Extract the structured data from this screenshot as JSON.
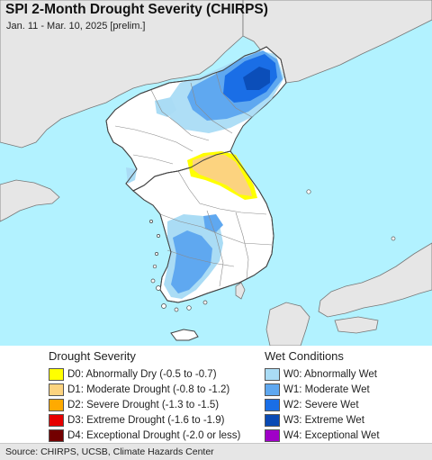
{
  "header": {
    "title": "SPI 2-Month Drought Severity (CHIRPS)",
    "subtitle": "Jan. 11 - Mar. 10, 2025 [prelim.]"
  },
  "legend": {
    "drought": {
      "heading": "Drought Severity",
      "items": [
        {
          "label": "D0: Abnormally Dry (-0.5 to -0.7)",
          "color": "#ffff00"
        },
        {
          "label": "D1: Moderate Drought (-0.8 to -1.2)",
          "color": "#fcd37f"
        },
        {
          "label": "D2: Severe Drought (-1.3 to -1.5)",
          "color": "#ffaa00"
        },
        {
          "label": "D3: Extreme Drought (-1.6 to -1.9)",
          "color": "#e60000"
        },
        {
          "label": "D4: Exceptional Drought (-2.0 or less)",
          "color": "#730000"
        }
      ]
    },
    "wet": {
      "heading": "Wet Conditions",
      "items": [
        {
          "label": "W0: Abnormally Wet",
          "color": "#aadcf5"
        },
        {
          "label": "W1: Moderate Wet",
          "color": "#5fa8f0"
        },
        {
          "label": "W2: Severe Wet",
          "color": "#1a6ee6"
        },
        {
          "label": "W3: Extreme Wet",
          "color": "#0a4ab4"
        },
        {
          "label": "W4: Exceptional Wet",
          "color": "#a000c8"
        }
      ]
    }
  },
  "footer": {
    "source": "Source: CHIRPS, UCSB, Climate Hazards Center"
  },
  "colors": {
    "water": "#b2f2ff",
    "land": "#ffffff",
    "non_study_land": "#e6e6e6",
    "border": "#444444",
    "province_line": "#8a8a8a"
  }
}
